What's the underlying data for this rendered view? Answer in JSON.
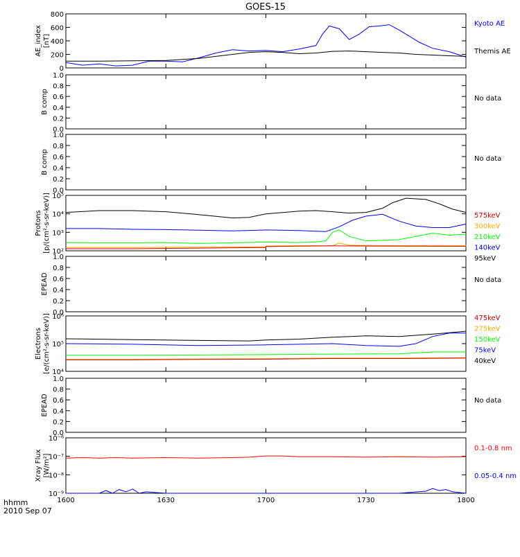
{
  "title": "GOES-15",
  "footer": {
    "unit_label": "hhmm",
    "date_label": "2010 Sep 07"
  },
  "x_axis": {
    "range": [
      1600,
      1800
    ],
    "ticks": [
      1600,
      1630,
      1700,
      1730,
      1800
    ],
    "tick_labels": [
      "1600",
      "1630",
      "1700",
      "1730",
      "1800"
    ]
  },
  "colors": {
    "black": "#000000",
    "blue": "#0000ff",
    "red": "#ff0000",
    "orange": "#ffa500",
    "green": "#00ff00",
    "darkred": "#cc0000"
  },
  "chart_data": [
    {
      "type": "line",
      "panel": "ae",
      "ylabel": [
        "AE_index",
        "[nT]"
      ],
      "ylim": [
        0,
        800
      ],
      "yticks": [
        0,
        200,
        400,
        600,
        800
      ],
      "ytick_labels": [
        "0",
        "200",
        "400",
        "600",
        "800"
      ],
      "legend": [
        {
          "text": "Kyoto AE",
          "color": "#0000ff"
        },
        {
          "text": "Themis AE",
          "color": "#000000"
        }
      ],
      "series": [
        {
          "name": "Kyoto AE",
          "color": "#0000ff",
          "x": [
            1600,
            1605,
            1610,
            1615,
            1620,
            1625,
            1630,
            1635,
            1640,
            1645,
            1650,
            1655,
            1700,
            1705,
            1710,
            1715,
            1717,
            1719,
            1722,
            1725,
            1728,
            1731,
            1734,
            1737,
            1740,
            1743,
            1746,
            1750,
            1755,
            1800
          ],
          "y": [
            80,
            40,
            60,
            30,
            40,
            100,
            100,
            90,
            150,
            220,
            270,
            250,
            260,
            240,
            280,
            330,
            500,
            620,
            580,
            420,
            500,
            610,
            620,
            640,
            560,
            470,
            380,
            290,
            240,
            160
          ]
        },
        {
          "name": "Themis AE",
          "color": "#000000",
          "x": [
            1600,
            1610,
            1620,
            1630,
            1640,
            1650,
            1655,
            1700,
            1705,
            1710,
            1715,
            1720,
            1725,
            1730,
            1735,
            1740,
            1745,
            1750,
            1755,
            1800
          ],
          "y": [
            100,
            100,
            105,
            110,
            140,
            200,
            230,
            240,
            230,
            210,
            220,
            245,
            250,
            240,
            230,
            220,
            200,
            190,
            180,
            170
          ]
        }
      ]
    },
    {
      "type": "line",
      "panel": "bcomp1",
      "ylabel": [
        "B comp"
      ],
      "ylim": [
        0,
        1.0
      ],
      "yticks": [
        0,
        0.2,
        0.4,
        0.6,
        0.8,
        1.0
      ],
      "ytick_labels": [
        "0.0",
        "0.2",
        "0.4",
        "0.6",
        "0.8",
        "1.0"
      ],
      "note": "No data",
      "series": []
    },
    {
      "type": "line",
      "panel": "bcomp2",
      "ylabel": [
        "B comp"
      ],
      "ylim": [
        0,
        1.0
      ],
      "yticks": [
        0,
        0.2,
        0.4,
        0.6,
        0.8,
        1.0
      ],
      "ytick_labels": [
        "0.0",
        "0.2",
        "0.4",
        "0.6",
        "0.8",
        "1.0"
      ],
      "note": "No data",
      "series": []
    },
    {
      "type": "line",
      "panel": "protons",
      "ylabel": [
        "Protons",
        "[p/(cm²-s-sr-keV)]"
      ],
      "ylog": true,
      "ylim": [
        100,
        100000
      ],
      "yticks": [
        100,
        1000,
        10000,
        100000
      ],
      "ytick_labels": [
        "10²",
        "10³",
        "10⁴",
        "10⁵"
      ],
      "legend": [
        {
          "text": "575keV",
          "color": "#cc0000"
        },
        {
          "text": "300keV",
          "color": "#ffa500"
        },
        {
          "text": "210keV",
          "color": "#00ff00"
        },
        {
          "text": "140keV",
          "color": "#0000ff"
        },
        {
          "text": "95keV",
          "color": "#000000"
        }
      ],
      "series": [
        {
          "name": "95keV",
          "color": "#000000",
          "x": [
            1600,
            1610,
            1620,
            1630,
            1640,
            1650,
            1655,
            1700,
            1710,
            1715,
            1720,
            1725,
            1730,
            1735,
            1738,
            1742,
            1748,
            1752,
            1756,
            1800
          ],
          "y": [
            12000,
            15000,
            15000,
            13000,
            9000,
            6000,
            6500,
            10000,
            14000,
            15000,
            13000,
            11000,
            12000,
            20000,
            40000,
            70000,
            60000,
            35000,
            18000,
            12000
          ]
        },
        {
          "name": "140keV",
          "color": "#0000ff",
          "x": [
            1600,
            1610,
            1620,
            1630,
            1640,
            1650,
            1700,
            1710,
            1715,
            1718,
            1722,
            1726,
            1730,
            1735,
            1740,
            1745,
            1750,
            1755,
            1800
          ],
          "y": [
            1600,
            1600,
            1450,
            1400,
            1300,
            1200,
            1350,
            1250,
            1150,
            1100,
            2000,
            4500,
            7500,
            9500,
            4000,
            2200,
            1800,
            1800,
            2800
          ]
        },
        {
          "name": "210keV",
          "color": "#00ff00",
          "x": [
            1600,
            1610,
            1620,
            1630,
            1640,
            1650,
            1700,
            1710,
            1715,
            1718,
            1720,
            1722,
            1725,
            1730,
            1740,
            1750,
            1755,
            1800
          ],
          "y": [
            280,
            270,
            270,
            280,
            250,
            270,
            300,
            280,
            300,
            350,
            1000,
            1350,
            600,
            340,
            400,
            900,
            700,
            800
          ]
        },
        {
          "name": "300keV",
          "color": "#ffa500",
          "x": [
            1600,
            1620,
            1640,
            1660,
            1700,
            1710,
            1720,
            1722,
            1725,
            1740,
            1760,
            1800
          ],
          "y": [
            150,
            150,
            160,
            165,
            180,
            190,
            190,
            260,
            200,
            190,
            190,
            200
          ]
        },
        {
          "name": "575keV",
          "color": "#cc0000",
          "x": [
            1600,
            1620,
            1640,
            1660,
            1700,
            1710,
            1720,
            1740,
            1760,
            1800
          ],
          "y": [
            130,
            130,
            140,
            150,
            170,
            180,
            185,
            180,
            175,
            165
          ]
        }
      ]
    },
    {
      "type": "line",
      "panel": "epead1",
      "ylabel": [
        "EPEAD"
      ],
      "ylim": [
        0,
        1.0
      ],
      "yticks": [
        0,
        0.2,
        0.4,
        0.6,
        0.8,
        1.0
      ],
      "ytick_labels": [
        "0.0",
        "0.2",
        "0.4",
        "0.6",
        "0.8",
        "1.0"
      ],
      "note": "No data",
      "series": []
    },
    {
      "type": "line",
      "panel": "electrons",
      "ylabel": [
        "Electrons",
        "[e/(cm²-s-sr-keV)]"
      ],
      "ylog": true,
      "ylim": [
        10000,
        1000000
      ],
      "yticks": [
        10000,
        100000,
        1000000
      ],
      "ytick_labels": [
        "10⁴",
        "10⁵",
        "10⁶"
      ],
      "legend": [
        {
          "text": "475keV",
          "color": "#cc0000"
        },
        {
          "text": "275keV",
          "color": "#ffa500"
        },
        {
          "text": "150keV",
          "color": "#00ff00"
        },
        {
          "text": "75keV",
          "color": "#0000ff"
        },
        {
          "text": "40keV",
          "color": "#000000"
        }
      ],
      "series": [
        {
          "name": "40keV",
          "color": "#000000",
          "x": [
            1600,
            1620,
            1640,
            1655,
            1700,
            1710,
            1720,
            1730,
            1740,
            1750,
            1800
          ],
          "y": [
            150000,
            140000,
            130000,
            125000,
            135000,
            145000,
            170000,
            190000,
            180000,
            220000,
            280000
          ]
        },
        {
          "name": "75keV",
          "color": "#0000ff",
          "x": [
            1600,
            1620,
            1640,
            1700,
            1710,
            1720,
            1730,
            1740,
            1745,
            1750,
            1755,
            1800
          ],
          "y": [
            100000,
            95000,
            85000,
            90000,
            95000,
            100000,
            85000,
            80000,
            100000,
            180000,
            240000,
            240000
          ]
        },
        {
          "name": "150keV",
          "color": "#00ff00",
          "x": [
            1600,
            1620,
            1640,
            1700,
            1720,
            1740,
            1750,
            1800
          ],
          "y": [
            38000,
            38000,
            39000,
            40000,
            42000,
            43000,
            50000,
            50000
          ]
        },
        {
          "name": "275keV",
          "color": "#ffa500",
          "x": [
            1600,
            1620,
            1640,
            1700,
            1720,
            1740,
            1760,
            1800
          ],
          "y": [
            27000,
            27000,
            28000,
            28500,
            30000,
            30000,
            31000,
            31000
          ]
        },
        {
          "name": "475keV",
          "color": "#cc0000",
          "x": [
            1600,
            1620,
            1640,
            1700,
            1720,
            1740,
            1760,
            1800
          ],
          "y": [
            26000,
            26000,
            27000,
            27500,
            29000,
            29000,
            30000,
            30000
          ]
        }
      ]
    },
    {
      "type": "line",
      "panel": "epead2",
      "ylabel": [
        "EPEAD"
      ],
      "ylim": [
        0,
        1.0
      ],
      "yticks": [
        0,
        0.2,
        0.4,
        0.6,
        0.8,
        1.0
      ],
      "ytick_labels": [
        "0.0",
        "0.2",
        "0.4",
        "0.6",
        "0.8",
        "1.0"
      ],
      "note": "No data",
      "series": []
    },
    {
      "type": "line",
      "panel": "xray",
      "ylabel": [
        "Xray Flux",
        "[W/m²]"
      ],
      "ylog": true,
      "ylim": [
        1e-09,
        1e-06
      ],
      "yticks": [
        1e-09,
        1e-08,
        1e-07,
        1e-06
      ],
      "ytick_labels": [
        "10⁻⁹",
        "10⁻⁸",
        "10⁻⁷",
        "10⁻⁶"
      ],
      "legend": [
        {
          "text": "0.1-0.8 nm",
          "color": "#ff0000"
        },
        {
          "text": "0.05-0.4 nm",
          "color": "#0000ff"
        }
      ],
      "series": [
        {
          "name": "0.1-0.8 nm",
          "color": "#ff0000",
          "x": [
            1600,
            1605,
            1610,
            1615,
            1620,
            1630,
            1640,
            1650,
            1655,
            1700,
            1705,
            1710,
            1720,
            1730,
            1740,
            1750,
            1800
          ],
          "y": [
            8e-08,
            8.5e-08,
            8e-08,
            8.5e-08,
            8e-08,
            8.5e-08,
            8e-08,
            8.5e-08,
            9e-08,
            1.05e-07,
            1.05e-07,
            9.5e-08,
            9.5e-08,
            9e-08,
            9.5e-08,
            9e-08,
            9.5e-08
          ]
        },
        {
          "name": "0.05-0.4 nm",
          "color": "#0000ff",
          "x": [
            1600,
            1610,
            1612,
            1614,
            1616,
            1618,
            1620,
            1622,
            1624,
            1630,
            1640,
            1650,
            1700,
            1710,
            1720,
            1730,
            1740,
            1748,
            1750,
            1752,
            1754,
            1756,
            1800
          ],
          "y": [
            1e-09,
            1e-09,
            1.4e-09,
            1e-09,
            1.6e-09,
            1.2e-09,
            1.7e-09,
            1e-09,
            1.2e-09,
            1e-09,
            1e-09,
            1e-09,
            1e-09,
            1e-09,
            1e-09,
            1e-09,
            1e-09,
            1.3e-09,
            1.8e-09,
            1.4e-09,
            1.6e-09,
            1.2e-09,
            1e-09
          ]
        }
      ]
    }
  ]
}
